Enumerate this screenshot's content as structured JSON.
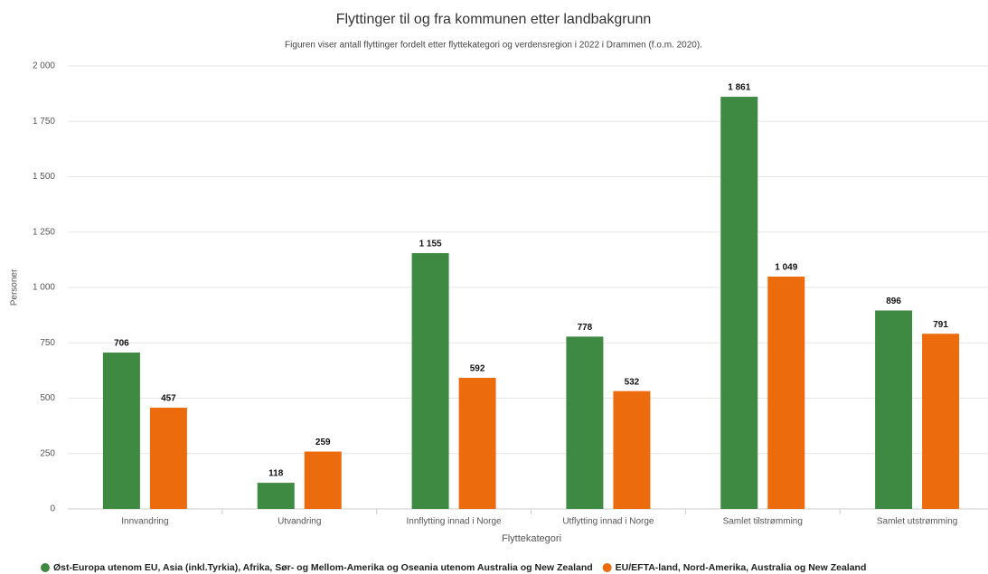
{
  "chart_data": {
    "type": "bar",
    "title": "Flyttinger til og fra kommunen etter landbakgrunn",
    "subtitle": "Figuren viser antall flyttinger fordelt etter flyttekategori og verdensregion i 2022 i Drammen (f.o.m. 2020).",
    "x_label": "Flyttekategori",
    "y_label": "Personer",
    "categories": [
      "Innvandring",
      "Utvandring",
      "Innflytting innad i Norge",
      "Utflytting innad i Norge",
      "Samlet tilstrømming",
      "Samlet utstrømming"
    ],
    "series": [
      {
        "name": "Øst-Europa utenom EU, Asia (inkl.Tyrkia), Afrika, Sør- og Mellom-Amerika og Oseania utenom Australia og New Zealand",
        "color": "#3f8a42",
        "values": [
          706,
          118,
          1155,
          778,
          1861,
          896
        ],
        "value_labels": [
          "706",
          "118",
          "1 155",
          "778",
          "1 861",
          "896"
        ]
      },
      {
        "name": "EU/EFTA-land, Nord-Amerika, Australia og New Zealand",
        "color": "#ec6c0d",
        "values": [
          457,
          259,
          592,
          532,
          1049,
          791
        ],
        "value_labels": [
          "457",
          "259",
          "592",
          "532",
          "1 049",
          "791"
        ]
      }
    ],
    "ylim": [
      0,
      2000
    ],
    "yticks": [
      0,
      250,
      500,
      750,
      {
        "value": 1000,
        "label": "1 000"
      },
      {
        "value": 1250,
        "label": "1 250"
      },
      {
        "value": 1500,
        "label": "1 500"
      },
      {
        "value": 1750,
        "label": "1 750"
      },
      {
        "value": 2000,
        "label": "2 000"
      }
    ],
    "grid": true,
    "legend": "bottom"
  }
}
